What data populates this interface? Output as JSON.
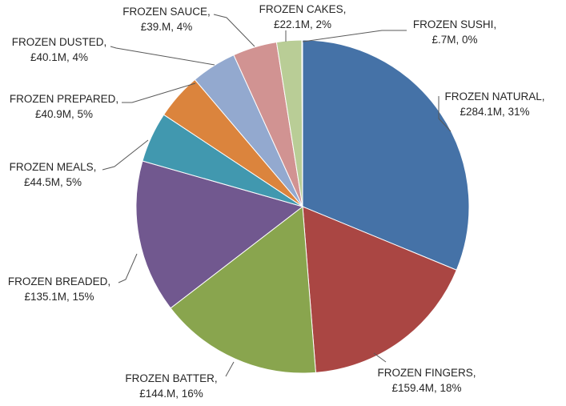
{
  "chart_data": {
    "type": "pie",
    "title": "",
    "start_angle_deg": 0,
    "direction": "clockwise",
    "slices": [
      {
        "name": "FROZEN NATURAL",
        "value": 284.1,
        "value_label": "£284.1M",
        "percent_label": "31%",
        "color": "#4572A7"
      },
      {
        "name": "FROZEN FINGERS",
        "value": 159.4,
        "value_label": "£159.4M",
        "percent_label": "18%",
        "color": "#AA4643"
      },
      {
        "name": "FROZEN BATTER",
        "value": 144.0,
        "value_label": "£144.M",
        "percent_label": "16%",
        "color": "#89A54E"
      },
      {
        "name": "FROZEN BREADED",
        "value": 135.1,
        "value_label": "£135.1M",
        "percent_label": "15%",
        "color": "#71588F"
      },
      {
        "name": "FROZEN MEALS",
        "value": 44.5,
        "value_label": "£44.5M",
        "percent_label": "5%",
        "color": "#4198AF"
      },
      {
        "name": "FROZEN PREPARED",
        "value": 40.9,
        "value_label": "£40.9M",
        "percent_label": "5%",
        "color": "#DB843D"
      },
      {
        "name": "FROZEN DUSTED",
        "value": 40.1,
        "value_label": "£40.1M",
        "percent_label": "4%",
        "color": "#93A9CF"
      },
      {
        "name": "FROZEN SAUCE",
        "value": 39.0,
        "value_label": "£39.M",
        "percent_label": "4%",
        "color": "#D19392"
      },
      {
        "name": "FROZEN CAKES",
        "value": 22.1,
        "value_label": "£22.1M",
        "percent_label": "2%",
        "color": "#B9CD96"
      },
      {
        "name": "FROZEN SUSHI",
        "value": 0.7,
        "value_label": "£.7M",
        "percent_label": "0%",
        "color": "#A99BBD"
      }
    ]
  }
}
